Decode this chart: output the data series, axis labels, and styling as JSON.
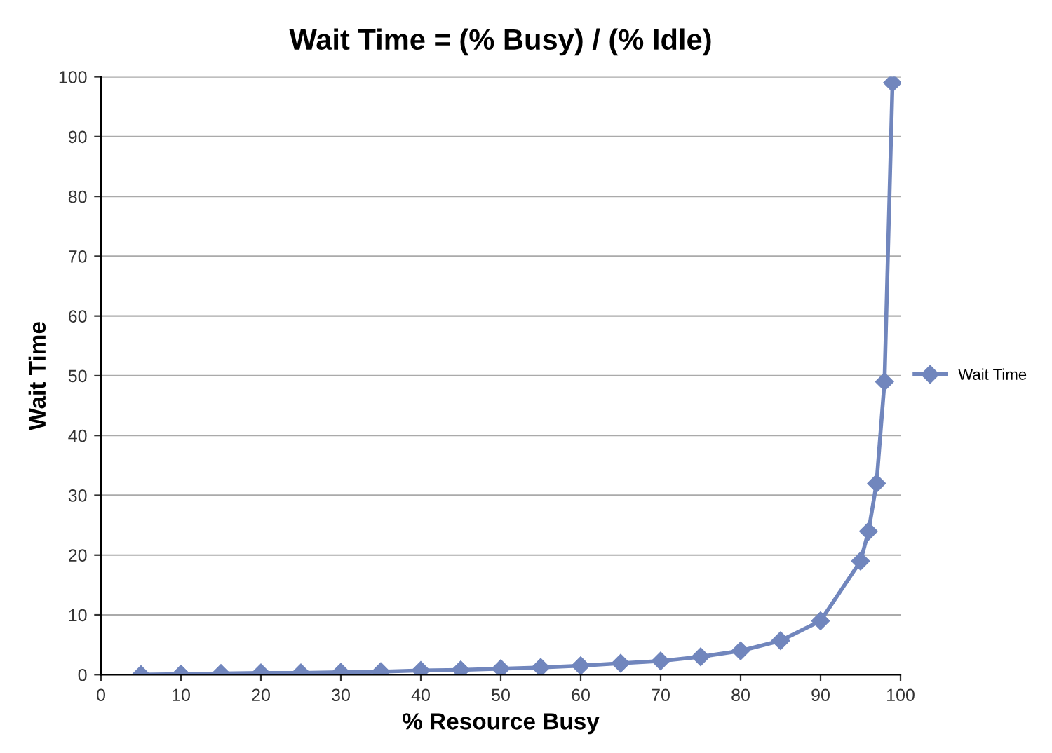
{
  "chart_data": {
    "type": "line",
    "title": "Wait Time = (% Busy) / (% Idle)",
    "xlabel": "% Resource Busy",
    "ylabel": "Wait Time",
    "x": [
      5,
      10,
      15,
      20,
      25,
      30,
      35,
      40,
      45,
      50,
      55,
      60,
      65,
      70,
      75,
      80,
      85,
      90,
      95,
      96,
      97,
      98,
      99
    ],
    "series": [
      {
        "name": "Wait Time",
        "color": "#7186bd",
        "values": [
          0,
          0.1,
          0.2,
          0.3,
          0.3,
          0.4,
          0.5,
          0.7,
          0.8,
          1,
          1.2,
          1.5,
          1.9,
          2.3,
          3,
          4,
          5.7,
          9,
          19,
          24,
          32,
          49,
          99
        ]
      }
    ],
    "xlim": [
      0,
      100
    ],
    "xticks": [
      0,
      10,
      20,
      30,
      40,
      50,
      60,
      70,
      80,
      90,
      100
    ],
    "ylim": [
      0,
      100
    ],
    "yticks": [
      0,
      10,
      20,
      30,
      40,
      50,
      60,
      70,
      80,
      90,
      100
    ],
    "grid": "y",
    "legend": "right",
    "marker": "diamond",
    "line_style": "solid"
  }
}
